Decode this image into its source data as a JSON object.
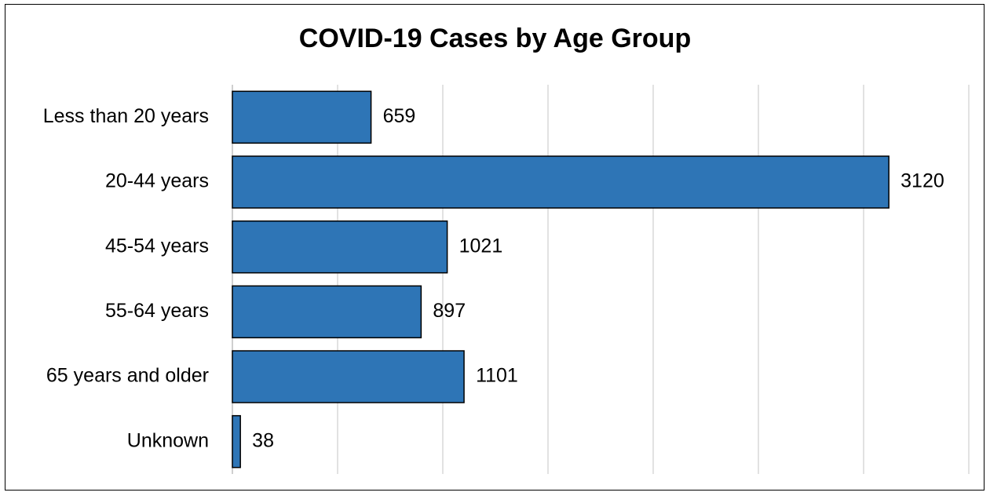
{
  "chart_data": {
    "type": "bar",
    "orientation": "horizontal",
    "title": "COVID-19 Cases by Age Group",
    "xlabel": "",
    "ylabel": "",
    "categories": [
      "Less than 20 years",
      "20-44 years",
      "45-54 years",
      "55-64 years",
      "65 years and older",
      "Unknown"
    ],
    "values": [
      659,
      3120,
      1021,
      897,
      1101,
      38
    ],
    "data_labels": [
      "659",
      "3120",
      "1021",
      "897",
      "1101",
      "38"
    ],
    "xlim": [
      0,
      3500
    ],
    "grid": true,
    "legend": "none",
    "bar_color": "#2E75B6",
    "bar_outline_color": "#000000",
    "grid_color": "#D9D9D9"
  }
}
